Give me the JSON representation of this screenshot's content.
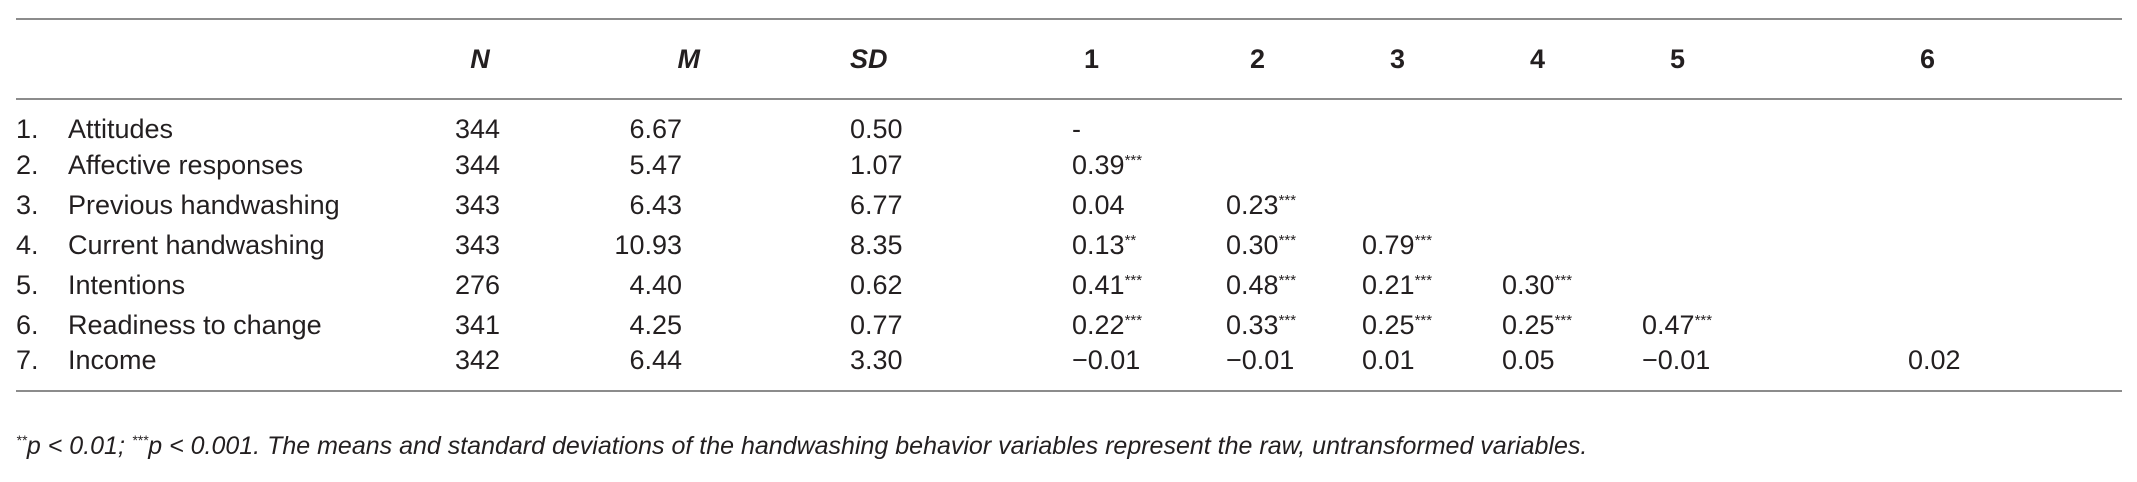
{
  "table": {
    "headers": {
      "n": "N",
      "m": "M",
      "sd": "SD",
      "c1": "1",
      "c2": "2",
      "c3": "3",
      "c4": "4",
      "c5": "5",
      "c6": "6"
    },
    "rows": [
      {
        "num": "1.",
        "label": "Attitudes",
        "n": "344",
        "m": "6.67",
        "sd": "0.50",
        "c1": "-",
        "c1s": "",
        "c2": "",
        "c2s": "",
        "c3": "",
        "c3s": "",
        "c4": "",
        "c4s": "",
        "c5": "",
        "c5s": "",
        "c6": ""
      },
      {
        "num": "2.",
        "label": "Affective responses",
        "n": "344",
        "m": "5.47",
        "sd": "1.07",
        "c1": "0.39",
        "c1s": "***",
        "c2": "",
        "c2s": "",
        "c3": "",
        "c3s": "",
        "c4": "",
        "c4s": "",
        "c5": "",
        "c5s": "",
        "c6": ""
      },
      {
        "num": "3.",
        "label": "Previous handwashing",
        "n": "343",
        "m": "6.43",
        "sd": "6.77",
        "c1": "0.04",
        "c1s": "",
        "c2": "0.23",
        "c2s": "***",
        "c3": "",
        "c3s": "",
        "c4": "",
        "c4s": "",
        "c5": "",
        "c5s": "",
        "c6": ""
      },
      {
        "num": "4.",
        "label": "Current handwashing",
        "n": "343",
        "m": "10.93",
        "sd": "8.35",
        "c1": "0.13",
        "c1s": "**",
        "c2": "0.30",
        "c2s": "***",
        "c3": "0.79",
        "c3s": "***",
        "c4": "",
        "c4s": "",
        "c5": "",
        "c5s": "",
        "c6": ""
      },
      {
        "num": "5.",
        "label": "Intentions",
        "n": "276",
        "m": "4.40",
        "sd": "0.62",
        "c1": "0.41",
        "c1s": "***",
        "c2": "0.48",
        "c2s": "***",
        "c3": "0.21",
        "c3s": "***",
        "c4": "0.30",
        "c4s": "***",
        "c5": "",
        "c5s": "",
        "c6": ""
      },
      {
        "num": "6.",
        "label": "Readiness to change",
        "n": "341",
        "m": "4.25",
        "sd": "0.77",
        "c1": "0.22",
        "c1s": "***",
        "c2": "0.33",
        "c2s": "***",
        "c3": "0.25",
        "c3s": "***",
        "c4": "0.25",
        "c4s": "***",
        "c5": "0.47",
        "c5s": "***",
        "c6": ""
      },
      {
        "num": "7.",
        "label": "Income",
        "n": "342",
        "m": "6.44",
        "sd": "3.30",
        "c1": "−0.01",
        "c1s": "",
        "c2": "−0.01",
        "c2s": "",
        "c3": "0.01",
        "c3s": "",
        "c4": "0.05",
        "c4s": "",
        "c5": "−0.01",
        "c5s": "",
        "c6": "0.02"
      }
    ]
  },
  "footnote": {
    "sup1": "**",
    "part1": "p < 0.01; ",
    "sup2": "***",
    "part2": "p < 0.001. The means and standard deviations of the handwashing behavior variables represent the raw, untransformed variables."
  }
}
